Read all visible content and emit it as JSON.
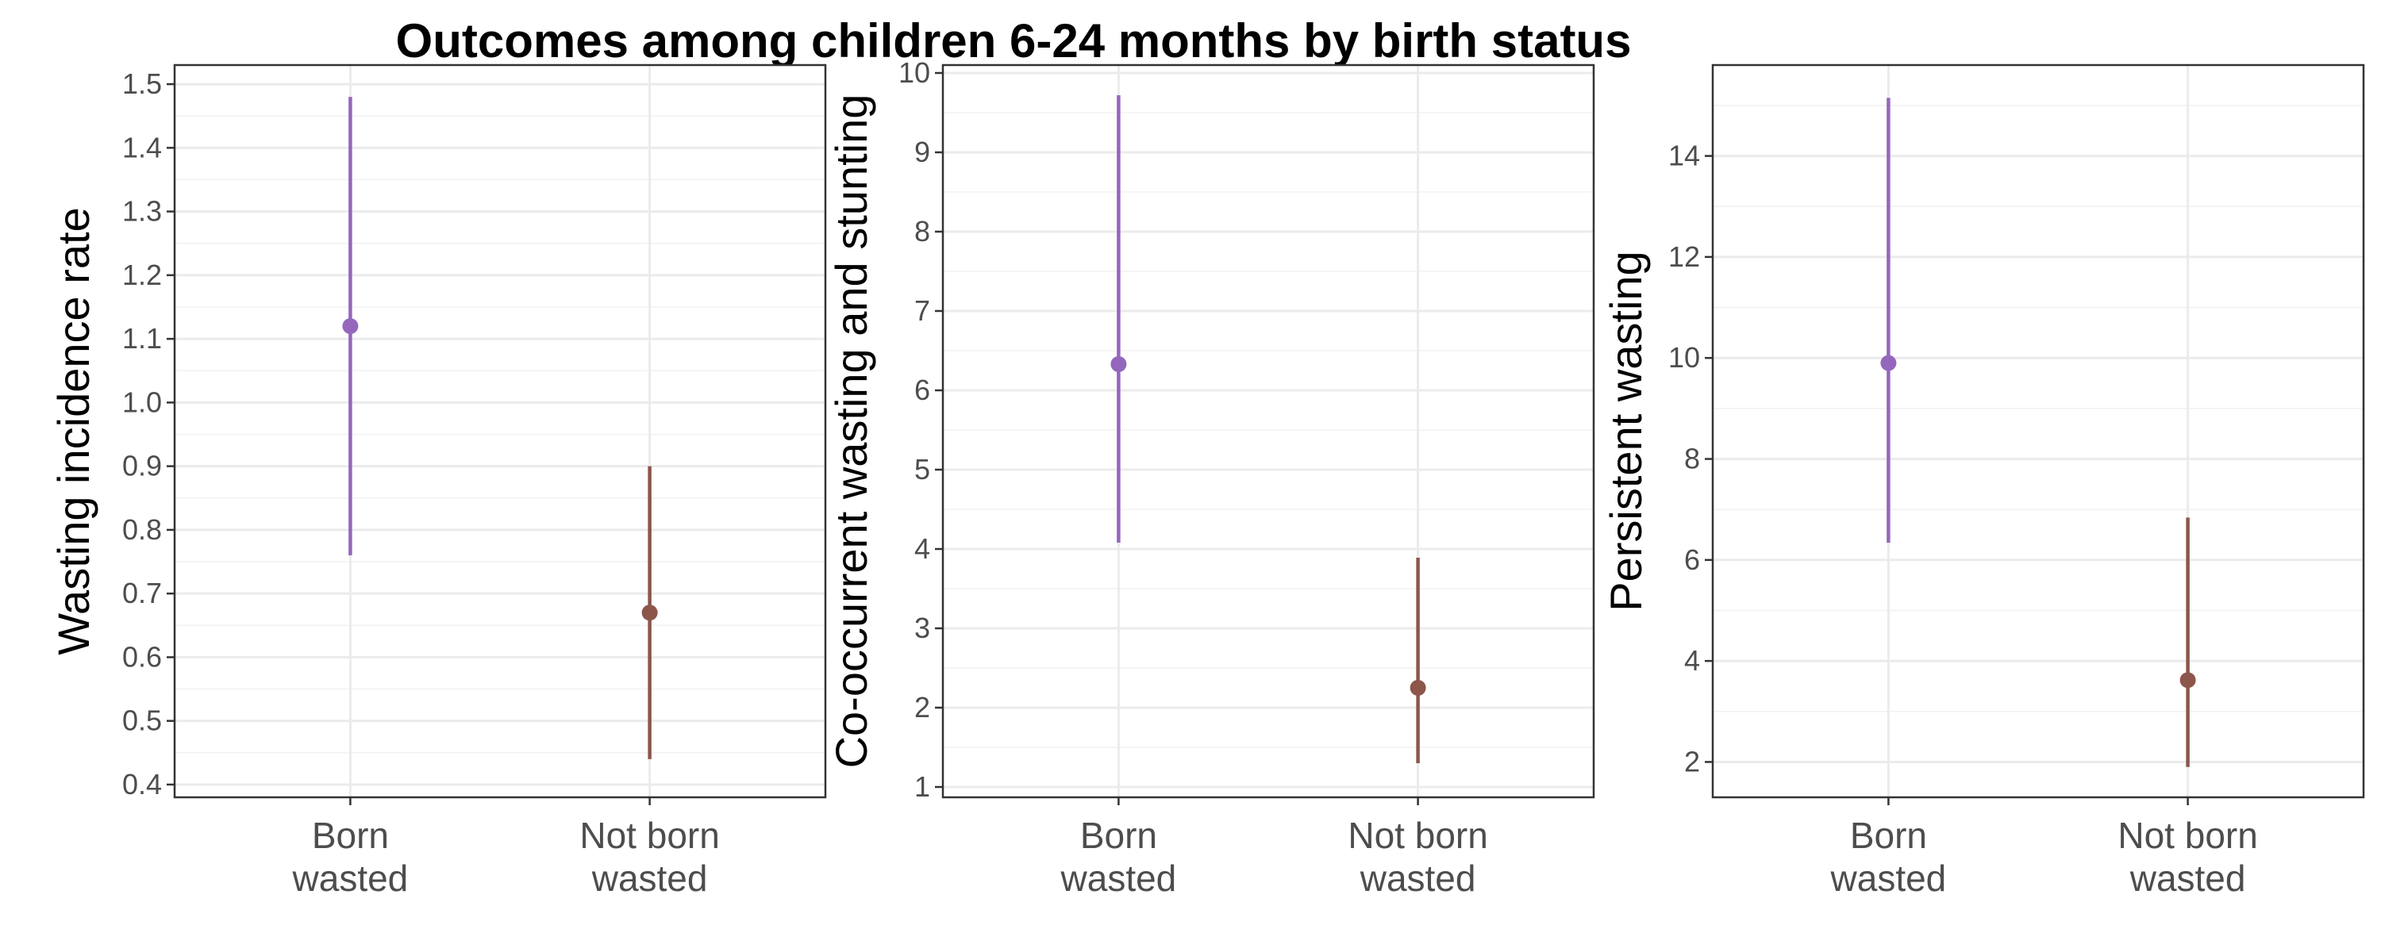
{
  "title": "Outcomes among children 6-24 months by birth status",
  "chart_data": [
    {
      "type": "pointrange",
      "ylabel": "Wasting incidence rate",
      "categories": [
        "Born\nwasted",
        "Not born\nwasted"
      ],
      "ylim": [
        0.38,
        1.53
      ],
      "yticks": [
        0.4,
        0.5,
        0.6,
        0.7,
        0.8,
        0.9,
        1.0,
        1.1,
        1.2,
        1.3,
        1.4,
        1.5
      ],
      "ytick_labels": [
        "0.4",
        "0.5",
        "0.6",
        "0.7",
        "0.8",
        "0.9",
        "1.0",
        "1.1",
        "1.2",
        "1.3",
        "1.4",
        "1.5"
      ],
      "points": [
        {
          "category": "Born\nwasted",
          "estimate": 1.12,
          "lower": 0.76,
          "upper": 1.48,
          "color": "#9467bd"
        },
        {
          "category": "Not born\nwasted",
          "estimate": 0.67,
          "lower": 0.44,
          "upper": 0.9,
          "color": "#8c564b"
        }
      ]
    },
    {
      "type": "pointrange",
      "ylabel": "Co-occurrent wasting and stunting",
      "categories": [
        "Born\nwasted",
        "Not born\nwasted"
      ],
      "ylim": [
        0.87,
        10.1
      ],
      "yticks": [
        1,
        2,
        3,
        4,
        5,
        6,
        7,
        8,
        9,
        10
      ],
      "ytick_labels": [
        "1",
        "2",
        "3",
        "4",
        "5",
        "6",
        "7",
        "8",
        "9",
        "10"
      ],
      "points": [
        {
          "category": "Born\nwasted",
          "estimate": 6.33,
          "lower": 4.08,
          "upper": 9.72,
          "color": "#9467bd"
        },
        {
          "category": "Not born\nwasted",
          "estimate": 2.25,
          "lower": 1.3,
          "upper": 3.89,
          "color": "#8c564b"
        }
      ]
    },
    {
      "type": "pointrange",
      "ylabel": "Persistent wasting",
      "categories": [
        "Born\nwasted",
        "Not born\nwasted"
      ],
      "ylim": [
        1.3,
        15.8
      ],
      "yticks": [
        2,
        4,
        6,
        8,
        10,
        12,
        14
      ],
      "ytick_labels": [
        "2",
        "4",
        "6",
        "8",
        "10",
        "12",
        "14"
      ],
      "points": [
        {
          "category": "Born\nwasted",
          "estimate": 9.9,
          "lower": 6.34,
          "upper": 15.15,
          "color": "#9467bd"
        },
        {
          "category": "Not born\nwasted",
          "estimate": 3.62,
          "lower": 1.9,
          "upper": 6.84,
          "color": "#8c564b"
        }
      ]
    }
  ]
}
